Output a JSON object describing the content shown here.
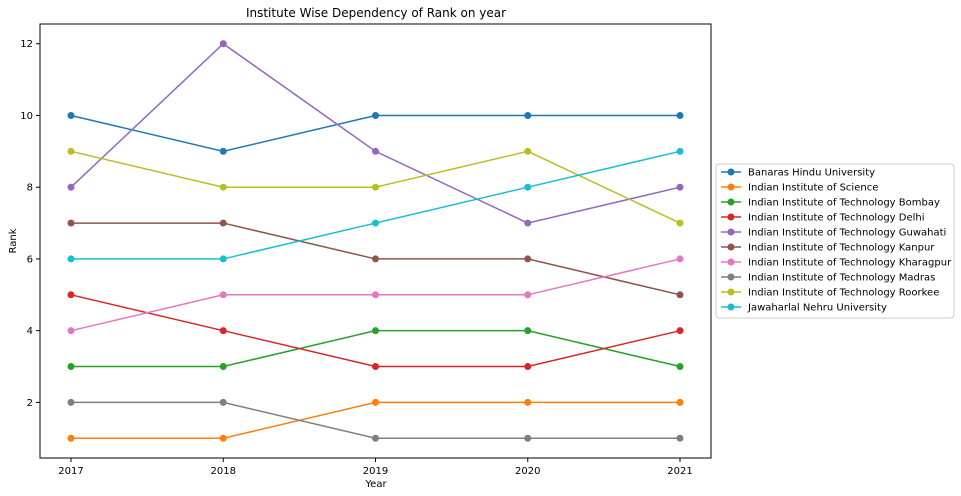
{
  "chart_data": {
    "type": "line",
    "title": "Institute Wise Dependency of Rank on year",
    "xlabel": "Year",
    "ylabel": "Rank",
    "categories": [
      "2017",
      "2018",
      "2019",
      "2020",
      "2021"
    ],
    "ylim": [
      0.45,
      12.55
    ],
    "yticks": [
      2,
      4,
      6,
      8,
      10,
      12
    ],
    "grid": false,
    "legend_position": "center-right-outside",
    "series": [
      {
        "name": "Banaras Hindu University",
        "color": "#1f77b4",
        "values": [
          10,
          9,
          10,
          10,
          10
        ]
      },
      {
        "name": "Indian Institute of Science",
        "color": "#ff7f0e",
        "values": [
          1,
          1,
          2,
          2,
          2
        ]
      },
      {
        "name": "Indian Institute of Technology Bombay",
        "color": "#2ca02c",
        "values": [
          3,
          3,
          4,
          4,
          3
        ]
      },
      {
        "name": "Indian Institute of Technology Delhi",
        "color": "#d62728",
        "values": [
          5,
          4,
          3,
          3,
          4
        ]
      },
      {
        "name": "Indian Institute of Technology Guwahati",
        "color": "#9467bd",
        "values": [
          8,
          12,
          9,
          7,
          8
        ]
      },
      {
        "name": "Indian Institute of Technology Kanpur",
        "color": "#8c564b",
        "values": [
          7,
          7,
          6,
          6,
          5
        ]
      },
      {
        "name": "Indian Institute of Technology Kharagpur",
        "color": "#e377c2",
        "values": [
          4,
          5,
          5,
          5,
          6
        ]
      },
      {
        "name": "Indian Institute of Technology Madras",
        "color": "#7f7f7f",
        "values": [
          2,
          2,
          1,
          1,
          1
        ]
      },
      {
        "name": "Indian Institute of Technology Roorkee",
        "color": "#bcbd22",
        "values": [
          9,
          8,
          8,
          9,
          7
        ]
      },
      {
        "name": "Jawaharlal Nehru University",
        "color": "#17becf",
        "values": [
          6,
          6,
          7,
          8,
          9
        ]
      }
    ]
  }
}
